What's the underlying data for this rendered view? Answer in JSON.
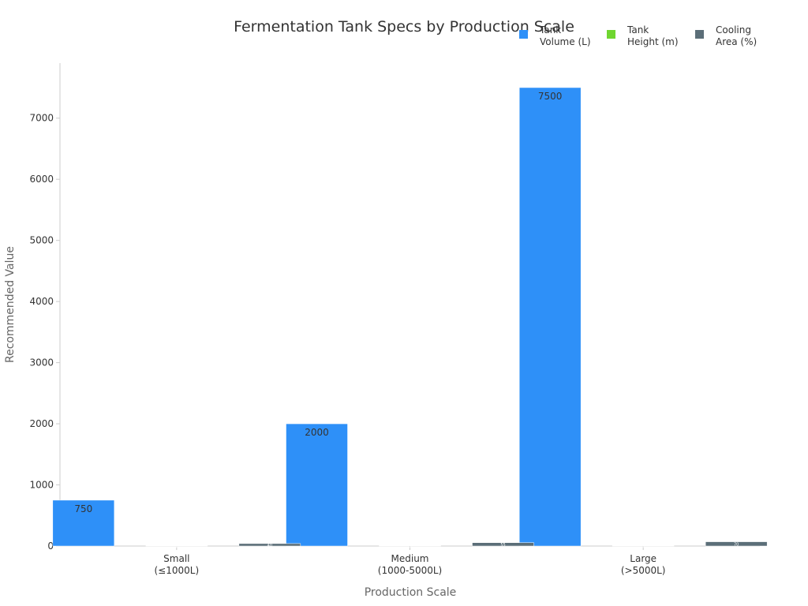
{
  "chart_data": {
    "type": "bar",
    "title": "Fermentation Tank Specs by Production Scale",
    "xlabel": "Production Scale",
    "ylabel": "Recommended Value",
    "categories": [
      [
        "Small",
        "(≤1000L)"
      ],
      [
        "Medium",
        "(1000-5000L)"
      ],
      [
        "Large",
        "(>5000L)"
      ]
    ],
    "ylim": [
      0,
      7900
    ],
    "yticks": [
      0,
      1000,
      2000,
      3000,
      4000,
      5000,
      6000,
      7000
    ],
    "series": [
      {
        "name": [
          "Tank",
          "Volume (L)"
        ],
        "color": "#2e90f8",
        "values": [
          750,
          2000,
          7500
        ]
      },
      {
        "name": [
          "Tank",
          "Height (m)"
        ],
        "color": "#6fd630",
        "values": [
          2,
          3,
          5
        ]
      },
      {
        "name": [
          "Cooling",
          "Area (%)"
        ],
        "color": "#5b6e78",
        "values": [
          40,
          55,
          70
        ]
      }
    ],
    "legend_position": "top-right",
    "grid": false
  }
}
